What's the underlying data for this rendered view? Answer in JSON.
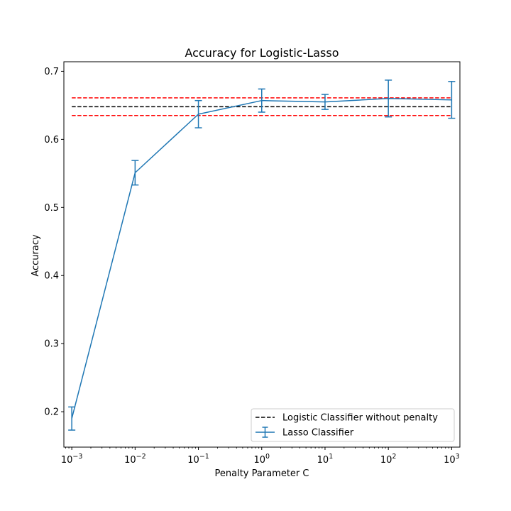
{
  "chart_data": {
    "type": "line",
    "title": "Accuracy for Logistic-Lasso",
    "xlabel": "Penalty Parameter C",
    "ylabel": "Accuracy",
    "xscale": "log",
    "xlim": [
      0.00075,
      1350
    ],
    "ylim": [
      0.148,
      0.714
    ],
    "x_ticks": [
      {
        "value": 0.001,
        "base": "10",
        "exp": "−3"
      },
      {
        "value": 0.01,
        "base": "10",
        "exp": "−2"
      },
      {
        "value": 0.1,
        "base": "10",
        "exp": "−1"
      },
      {
        "value": 1,
        "base": "10",
        "exp": "0"
      },
      {
        "value": 10,
        "base": "10",
        "exp": "1"
      },
      {
        "value": 100,
        "base": "10",
        "exp": "2"
      },
      {
        "value": 1000,
        "base": "10",
        "exp": "3"
      }
    ],
    "y_ticks": [
      {
        "value": 0.2,
        "label": "0.2"
      },
      {
        "value": 0.3,
        "label": "0.3"
      },
      {
        "value": 0.4,
        "label": "0.4"
      },
      {
        "value": 0.5,
        "label": "0.5"
      },
      {
        "value": 0.6,
        "label": "0.6"
      },
      {
        "value": 0.7,
        "label": "0.7"
      }
    ],
    "grid": false,
    "legend_position": "lower-right",
    "series": [
      {
        "name": "Lasso Classifier",
        "kind": "errorbar",
        "color": "#1f77b4",
        "x": [
          0.001,
          0.01,
          0.1,
          1,
          10,
          100,
          1000
        ],
        "y": [
          0.19,
          0.551,
          0.637,
          0.657,
          0.655,
          0.66,
          0.658
        ],
        "err": [
          0.017,
          0.018,
          0.02,
          0.017,
          0.011,
          0.027,
          0.027
        ]
      }
    ],
    "reference_lines": [
      {
        "name": "Logistic Classifier without penalty",
        "value": 0.648,
        "color": "#000000",
        "style": "dashed",
        "in_legend": true
      },
      {
        "value": 0.661,
        "color": "#ff0000",
        "style": "dashed",
        "in_legend": false
      },
      {
        "value": 0.635,
        "color": "#ff0000",
        "style": "dashed",
        "in_legend": false
      }
    ],
    "reference_x_range": [
      0.001,
      1000
    ]
  }
}
